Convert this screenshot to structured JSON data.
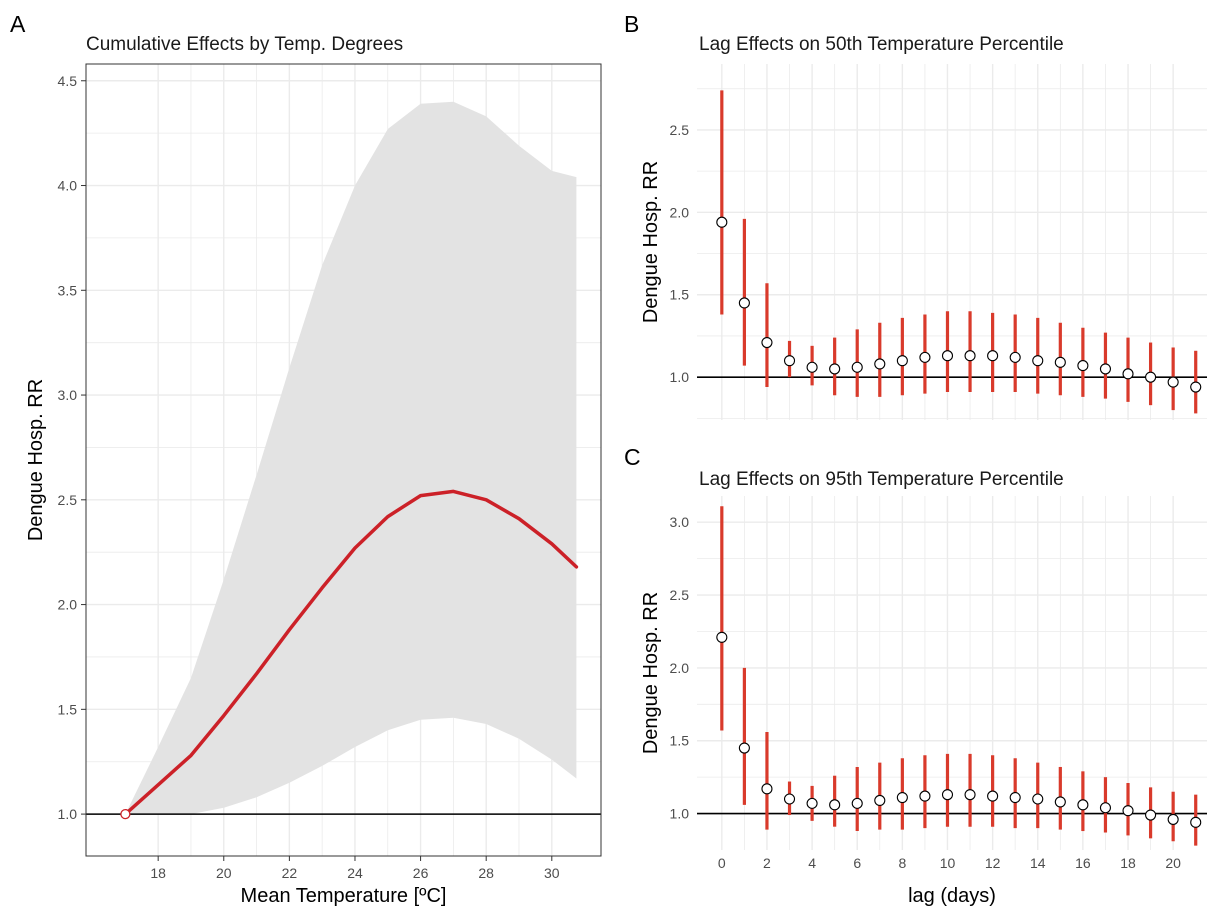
{
  "colors": {
    "accent_red": "#cc2128",
    "errorbar_red": "#d93a2b",
    "ribbon_gray": "#e3e3e3",
    "grid_gray": "#ebebeb",
    "reference_line": "#000000"
  },
  "chart_data": [
    {
      "panel_label": "A",
      "type": "line",
      "title": "Cumulative Effects by Temp. Degrees",
      "xlabel": "Mean Temperature [ºC]",
      "ylabel": "Dengue Hosp. RR",
      "xlim": [
        15.8,
        31.5
      ],
      "ylim": [
        0.8,
        4.58
      ],
      "xticks": [
        18,
        20,
        22,
        24,
        26,
        28,
        30
      ],
      "yticks": [
        1.0,
        1.5,
        2.0,
        2.5,
        3.0,
        3.5,
        4.0,
        4.5
      ],
      "ytick_labels": [
        "1.0",
        "1.5",
        "2.0",
        "2.5",
        "3.0",
        "3.5",
        "4.0",
        "4.5"
      ],
      "grid": true,
      "border": true,
      "reference_y": 1.0,
      "reference_point": {
        "x": 17.0,
        "y": 1.0
      },
      "series": [
        {
          "x": [
            17.0,
            18.0,
            19.0,
            20.0,
            21.0,
            22.0,
            23.0,
            24.0,
            25.0,
            26.0,
            27.0,
            28.0,
            29.0,
            30.0,
            30.75
          ],
          "y": [
            1.0,
            1.14,
            1.28,
            1.47,
            1.67,
            1.88,
            2.08,
            2.27,
            2.42,
            2.52,
            2.54,
            2.5,
            2.41,
            2.29,
            2.18
          ]
        }
      ],
      "ci_lower": [
        1.0,
        1.0,
        1.0,
        1.03,
        1.08,
        1.15,
        1.23,
        1.32,
        1.4,
        1.45,
        1.46,
        1.43,
        1.36,
        1.26,
        1.17
      ],
      "ci_upper": [
        1.0,
        1.32,
        1.65,
        2.12,
        2.62,
        3.13,
        3.62,
        4.0,
        4.27,
        4.39,
        4.4,
        4.33,
        4.19,
        4.07,
        4.04
      ]
    },
    {
      "panel_label": "B",
      "type": "errorbar",
      "title": "Lag Effects on 50th Temperature Percentile",
      "xlabel": "",
      "ylabel": "Dengue Hosp. RR",
      "xlim": [
        -1.1,
        21.5
      ],
      "ylim": [
        0.74,
        2.9
      ],
      "xticks": [
        0,
        2,
        4,
        6,
        8,
        10,
        12,
        14,
        16,
        18,
        20
      ],
      "show_x_tick_labels": false,
      "yticks": [
        1.0,
        1.5,
        2.0,
        2.5
      ],
      "ytick_labels": [
        "1.0",
        "1.5",
        "2.0",
        "2.5"
      ],
      "grid": true,
      "reference_y": 1.0,
      "x": [
        0,
        1,
        2,
        3,
        4,
        5,
        6,
        7,
        8,
        9,
        10,
        11,
        12,
        13,
        14,
        15,
        16,
        17,
        18,
        19,
        20,
        21
      ],
      "y": [
        1.94,
        1.45,
        1.21,
        1.1,
        1.06,
        1.05,
        1.06,
        1.08,
        1.1,
        1.12,
        1.13,
        1.13,
        1.13,
        1.12,
        1.1,
        1.09,
        1.07,
        1.05,
        1.02,
        1.0,
        0.97,
        0.94
      ],
      "lower": [
        1.38,
        1.07,
        0.94,
        1.0,
        0.95,
        0.89,
        0.88,
        0.88,
        0.89,
        0.9,
        0.91,
        0.91,
        0.91,
        0.91,
        0.9,
        0.89,
        0.88,
        0.87,
        0.85,
        0.83,
        0.8,
        0.78
      ],
      "upper": [
        2.74,
        1.96,
        1.57,
        1.22,
        1.19,
        1.24,
        1.29,
        1.33,
        1.36,
        1.38,
        1.4,
        1.4,
        1.39,
        1.38,
        1.36,
        1.33,
        1.3,
        1.27,
        1.24,
        1.21,
        1.18,
        1.16
      ]
    },
    {
      "panel_label": "C",
      "type": "errorbar",
      "title": "Lag Effects on 95th Temperature Percentile",
      "xlabel": "lag (days)",
      "ylabel": "Dengue Hosp. RR",
      "xlim": [
        -1.1,
        21.5
      ],
      "ylim": [
        0.75,
        3.18
      ],
      "xticks": [
        0,
        2,
        4,
        6,
        8,
        10,
        12,
        14,
        16,
        18,
        20
      ],
      "show_x_tick_labels": true,
      "yticks": [
        1.0,
        1.5,
        2.0,
        2.5,
        3.0
      ],
      "ytick_labels": [
        "1.0",
        "1.5",
        "2.0",
        "2.5",
        "3.0"
      ],
      "grid": true,
      "reference_y": 1.0,
      "x": [
        0,
        1,
        2,
        3,
        4,
        5,
        6,
        7,
        8,
        9,
        10,
        11,
        12,
        13,
        14,
        15,
        16,
        17,
        18,
        19,
        20,
        21
      ],
      "y": [
        2.21,
        1.45,
        1.17,
        1.1,
        1.07,
        1.06,
        1.07,
        1.09,
        1.11,
        1.12,
        1.13,
        1.13,
        1.12,
        1.11,
        1.1,
        1.08,
        1.06,
        1.04,
        1.02,
        0.99,
        0.96,
        0.94
      ],
      "lower": [
        1.57,
        1.06,
        0.89,
        0.99,
        0.95,
        0.91,
        0.88,
        0.89,
        0.89,
        0.9,
        0.91,
        0.91,
        0.91,
        0.9,
        0.9,
        0.89,
        0.88,
        0.87,
        0.85,
        0.83,
        0.81,
        0.78
      ],
      "upper": [
        3.11,
        2.0,
        1.56,
        1.22,
        1.19,
        1.26,
        1.32,
        1.35,
        1.38,
        1.4,
        1.41,
        1.41,
        1.4,
        1.38,
        1.35,
        1.32,
        1.29,
        1.25,
        1.21,
        1.18,
        1.15,
        1.13
      ]
    }
  ]
}
